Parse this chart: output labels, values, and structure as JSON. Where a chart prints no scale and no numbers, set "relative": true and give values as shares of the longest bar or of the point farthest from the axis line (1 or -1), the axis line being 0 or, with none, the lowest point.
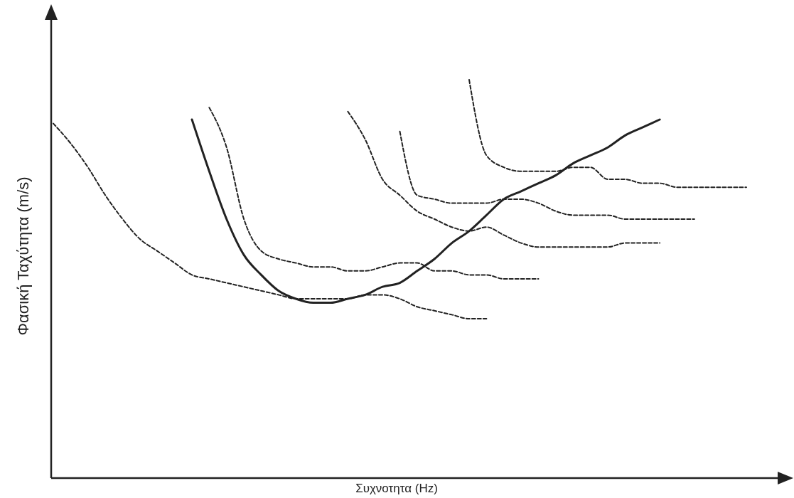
{
  "chart_data": {
    "type": "line",
    "relative": true,
    "xlabel": "Συχνοτητα (Hz)",
    "ylabel": "Φασική Ταχύτητα (m/s)",
    "grid": false,
    "marker": "none",
    "categories": [
      null,
      null,
      null,
      null,
      null,
      null,
      null,
      null,
      null,
      null,
      null,
      null,
      null,
      null,
      null,
      null,
      null,
      null,
      null,
      null,
      null,
      null,
      null,
      null,
      null,
      null,
      null,
      null,
      null,
      null,
      null,
      null,
      null,
      null,
      null,
      null,
      null,
      null,
      null,
      null,
      null
    ],
    "series": [
      {
        "color": "#222222",
        "line_style": "dashed",
        "values": [
          0.89,
          0.84,
          0.78,
          0.71,
          0.65,
          0.6,
          0.57,
          0.54,
          0.51,
          0.5,
          0.49,
          0.48,
          0.47,
          0.46,
          0.45,
          0.45,
          0.45,
          0.45,
          0.46,
          0.46,
          0.45,
          0.43,
          0.42,
          0.41,
          0.4,
          0.4,
          null,
          null,
          null,
          null,
          null,
          null,
          null,
          null,
          null,
          null,
          null,
          null,
          null,
          null,
          null
        ]
      },
      {
        "color": "#222222",
        "line_style": "solid",
        "values": [
          null,
          null,
          null,
          null,
          null,
          null,
          null,
          null,
          0.9,
          0.77,
          0.65,
          0.56,
          0.51,
          0.47,
          0.45,
          0.44,
          0.44,
          0.45,
          0.46,
          0.48,
          0.49,
          0.52,
          0.55,
          0.59,
          0.62,
          0.66,
          0.7,
          0.72,
          0.74,
          0.76,
          0.79,
          0.81,
          0.83,
          0.86,
          0.88,
          0.9,
          null,
          null,
          null,
          null,
          null
        ]
      },
      {
        "color": "#222222",
        "line_style": "dashed",
        "values": [
          null,
          null,
          null,
          null,
          null,
          null,
          null,
          null,
          null,
          0.93,
          0.83,
          0.65,
          0.57,
          0.55,
          0.54,
          0.53,
          0.53,
          0.52,
          0.52,
          0.53,
          0.54,
          0.54,
          0.52,
          0.52,
          0.51,
          0.51,
          0.5,
          0.5,
          0.5,
          null,
          null,
          null,
          null,
          null,
          null,
          null,
          null,
          null,
          null,
          null,
          null
        ]
      },
      {
        "color": "#222222",
        "line_style": "dashed",
        "values": [
          null,
          null,
          null,
          null,
          null,
          null,
          null,
          null,
          null,
          null,
          null,
          null,
          null,
          null,
          null,
          null,
          null,
          0.92,
          0.85,
          0.75,
          0.71,
          0.67,
          0.65,
          0.63,
          0.62,
          0.63,
          0.61,
          0.59,
          0.58,
          0.58,
          0.58,
          0.58,
          0.58,
          0.59,
          0.59,
          0.59,
          null,
          null,
          null,
          null,
          null
        ]
      },
      {
        "color": "#222222",
        "line_style": "dashed",
        "values": [
          null,
          null,
          null,
          null,
          null,
          null,
          null,
          null,
          null,
          null,
          null,
          null,
          null,
          null,
          null,
          null,
          null,
          null,
          null,
          null,
          0.87,
          0.71,
          0.7,
          0.69,
          0.69,
          0.69,
          0.7,
          0.7,
          0.69,
          0.67,
          0.66,
          0.66,
          0.66,
          0.65,
          0.65,
          0.65,
          0.65,
          0.65,
          null,
          null,
          null
        ]
      },
      {
        "color": "#222222",
        "line_style": "dashed",
        "values": [
          null,
          null,
          null,
          null,
          null,
          null,
          null,
          null,
          null,
          null,
          null,
          null,
          null,
          null,
          null,
          null,
          null,
          null,
          null,
          null,
          null,
          null,
          null,
          null,
          1.0,
          0.81,
          0.78,
          0.77,
          0.77,
          0.77,
          0.78,
          0.78,
          0.75,
          0.75,
          0.74,
          0.74,
          0.73,
          0.73,
          0.73,
          0.73,
          0.73
        ]
      }
    ]
  }
}
